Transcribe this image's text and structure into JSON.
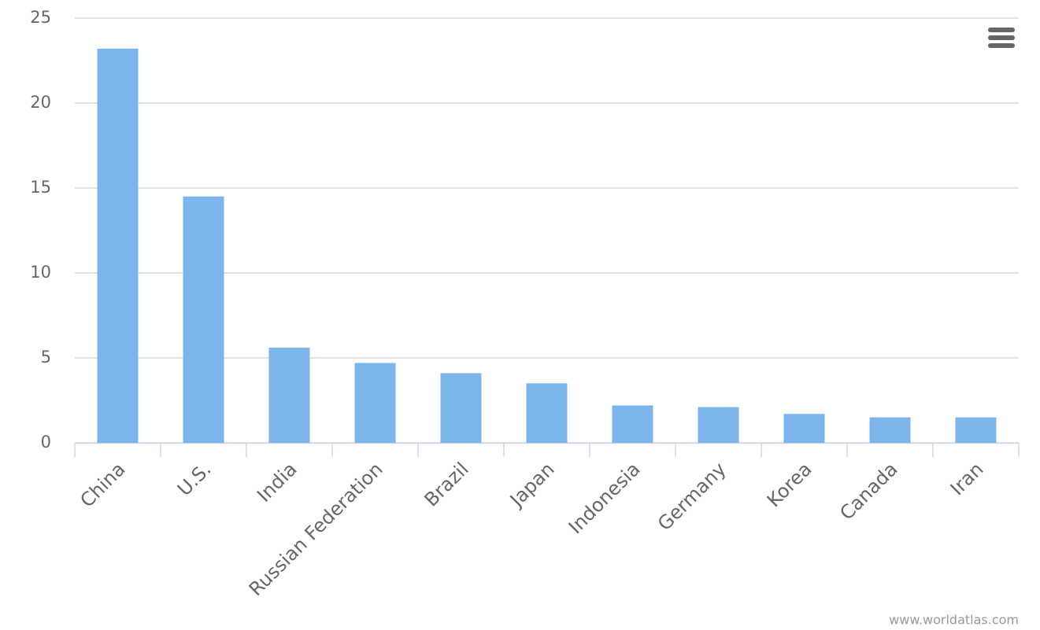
{
  "chart_data": {
    "type": "bar",
    "categories": [
      "China",
      "U.S.",
      "India",
      "Russian Federation",
      "Brazil",
      "Japan",
      "Indonesia",
      "Germany",
      "Korea",
      "Canada",
      "Iran"
    ],
    "values": [
      23.2,
      14.5,
      5.6,
      4.7,
      4.1,
      3.5,
      2.2,
      2.1,
      1.7,
      1.5,
      1.5
    ],
    "color": "#7cb5ec",
    "ylim": [
      0,
      25
    ],
    "yticks": [
      0,
      5,
      10,
      15,
      20,
      25
    ],
    "grid": true,
    "credits": "www.worldatlas.com"
  }
}
